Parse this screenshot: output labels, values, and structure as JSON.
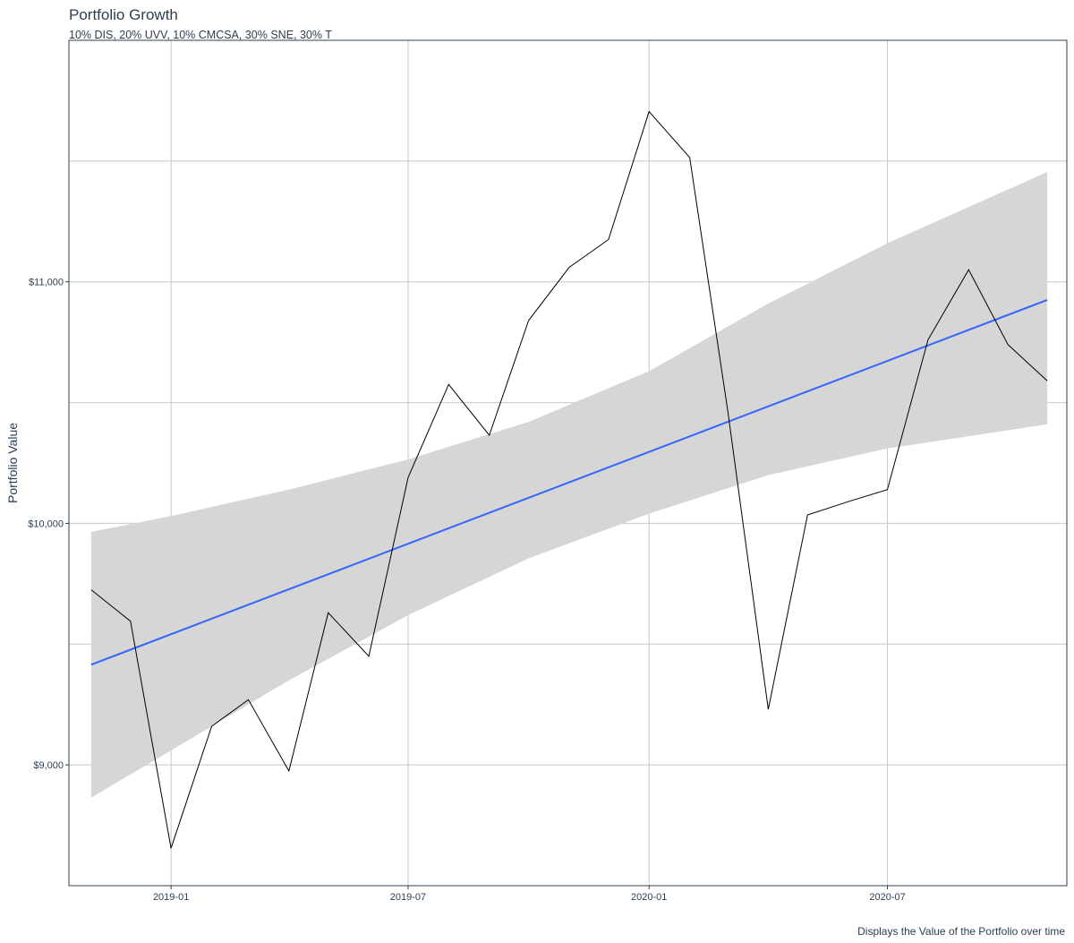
{
  "title": "Portfolio Growth",
  "subtitle": "10% DIS, 20% UVV, 10% CMCSA, 30% SNE, 30% T",
  "caption": "Displays the Value of the Portfolio over time",
  "colors": {
    "line": "#000000",
    "trend": "#3366ff",
    "ribbon": "#d6d6d6",
    "grid": "#c8c8c8",
    "panel_border": "#2c3e50",
    "text": "#2c3e50"
  },
  "chart_data": {
    "type": "line",
    "title": "Portfolio Growth",
    "subtitle": "10% DIS, 20% UVV, 10% CMCSA, 30% SNE, 30% T",
    "xlabel": "",
    "ylabel": "Portfolio Value",
    "caption": "Displays the Value of the Portfolio over time",
    "grid": true,
    "xlim": [
      "2018-10-15",
      "2020-11-15"
    ],
    "ylim": [
      8500,
      12000
    ],
    "x_ticks": [
      "2019-01",
      "2019-07",
      "2020-01",
      "2020-07"
    ],
    "y_ticks": [
      9000,
      10000,
      11000
    ],
    "y_tick_labels": [
      "$9,000",
      "$10,000",
      "$11,000"
    ],
    "series": [
      {
        "name": "Portfolio",
        "x": [
          "2018-11-01",
          "2018-12-01",
          "2019-01-01",
          "2019-02-01",
          "2019-03-01",
          "2019-04-01",
          "2019-05-01",
          "2019-06-01",
          "2019-07-01",
          "2019-08-01",
          "2019-09-01",
          "2019-10-01",
          "2019-11-01",
          "2019-12-01",
          "2020-01-01",
          "2020-02-01",
          "2020-03-01",
          "2020-04-01",
          "2020-05-01",
          "2020-06-01",
          "2020-07-01",
          "2020-08-01",
          "2020-09-01",
          "2020-10-01",
          "2020-10-31"
        ],
        "values": [
          9725,
          9595,
          8655,
          9160,
          9270,
          8975,
          9630,
          9450,
          10190,
          10575,
          10365,
          10840,
          11060,
          11175,
          11705,
          11515,
          10470,
          9230,
          10035,
          10090,
          10140,
          10760,
          11050,
          10740,
          10590
        ]
      },
      {
        "name": "Linear trend",
        "x": [
          "2018-11-01",
          "2020-10-31"
        ],
        "values": [
          9415,
          10925
        ]
      }
    ],
    "confidence_band": {
      "x": [
        "2018-11-01",
        "2019-01-01",
        "2019-04-01",
        "2019-07-01",
        "2019-10-01",
        "2020-01-01",
        "2020-04-01",
        "2020-07-01",
        "2020-10-31"
      ],
      "upper": [
        9965,
        10030,
        10140,
        10265,
        10420,
        10630,
        10910,
        11160,
        11455
      ],
      "lower": [
        8865,
        9060,
        9350,
        9620,
        9855,
        10040,
        10200,
        10310,
        10410
      ]
    }
  }
}
